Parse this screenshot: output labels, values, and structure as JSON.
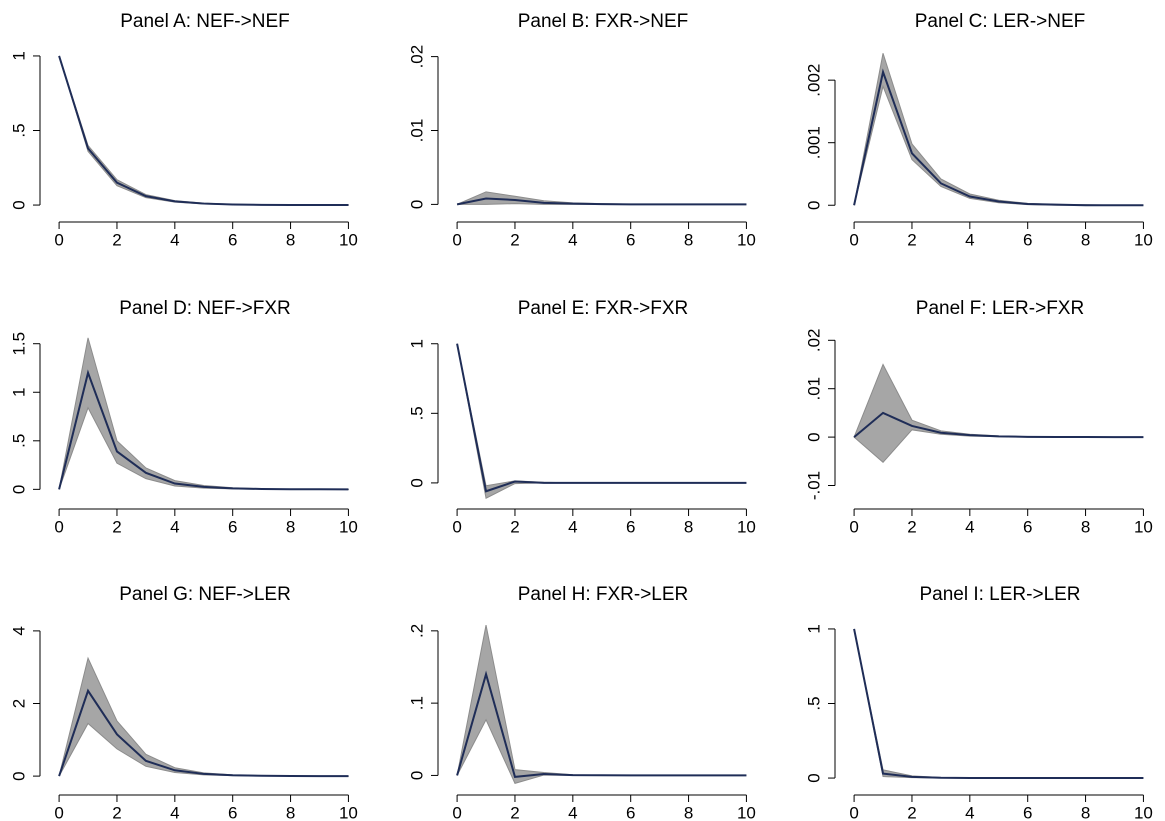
{
  "chart_data": [
    {
      "type": "irf",
      "title": "Panel A: NEF->NEF",
      "x": [
        0,
        1,
        2,
        3,
        4,
        5,
        6,
        7,
        8,
        9,
        10
      ],
      "values": [
        1,
        0.38,
        0.15,
        0.06,
        0.025,
        0.01,
        0.004,
        0.0015,
        0.0006,
        0.0002,
        0.0001
      ],
      "band": {
        "lower": [
          1,
          0.36,
          0.13,
          0.05,
          0.02,
          0.007,
          0.003,
          0.001,
          0.0004,
          0.0001,
          0
        ],
        "upper": [
          1,
          0.4,
          0.17,
          0.07,
          0.03,
          0.013,
          0.005,
          0.002,
          0.0008,
          0.0003,
          0.0001
        ],
        "color": "#a6a6a6"
      },
      "color": "#1f2d57",
      "xlim": [
        -0.66,
        10.4
      ],
      "xticks": [
        0,
        2,
        4,
        6,
        8,
        10
      ],
      "ylim": [
        -0.06,
        1.06
      ],
      "yticks": [
        0,
        {
          "value": 0.5,
          "label": ".5"
        },
        1
      ]
    },
    {
      "type": "irf",
      "title": "Panel B: FXR->NEF",
      "x": [
        0,
        1,
        2,
        3,
        4,
        5,
        6,
        7,
        8,
        9,
        10
      ],
      "values": [
        0,
        0.0008,
        0.0006,
        0.0002,
        0.0001,
        4e-05,
        1e-05,
        0,
        0,
        0,
        0
      ],
      "band": {
        "lower": [
          0,
          0,
          0.0001,
          0,
          0,
          0,
          0,
          0,
          0,
          0,
          0
        ],
        "upper": [
          0,
          0.0017,
          0.0011,
          0.0005,
          0.0002,
          0.0001,
          3e-05,
          1e-05,
          0,
          0,
          0
        ],
        "color": "#a6a6a6"
      },
      "color": "#1f2d57",
      "xlim": [
        -0.66,
        10.4
      ],
      "xticks": [
        0,
        2,
        4,
        6,
        8,
        10
      ],
      "ylim": [
        -0.0013,
        0.0213
      ],
      "yticks": [
        0,
        {
          "value": 0.01,
          "label": ".01"
        },
        {
          "value": 0.02,
          "label": ".02"
        }
      ]
    },
    {
      "type": "irf",
      "title": "Panel C: LER->NEF",
      "x": [
        0,
        1,
        2,
        3,
        4,
        5,
        6,
        7,
        8,
        9,
        10
      ],
      "values": [
        0,
        0.00213,
        0.00083,
        0.00035,
        0.00014,
        6e-05,
        2e-05,
        1e-05,
        0,
        0,
        0
      ],
      "band": {
        "lower": [
          0,
          0.0019,
          0.00073,
          0.0003,
          0.00011,
          4e-05,
          1e-05,
          0,
          0,
          0,
          0
        ],
        "upper": [
          0,
          0.00243,
          0.00098,
          0.00042,
          0.00018,
          8e-05,
          3e-05,
          1e-05,
          1e-05,
          0,
          0
        ],
        "color": "#a6a6a6"
      },
      "color": "#1f2d57",
      "xlim": [
        -0.66,
        10.4
      ],
      "xticks": [
        0,
        2,
        4,
        6,
        8,
        10
      ],
      "ylim": [
        -0.00014,
        0.00253
      ],
      "yticks": [
        0,
        {
          "value": 0.001,
          "label": ".001"
        },
        {
          "value": 0.002,
          "label": ".002"
        }
      ]
    },
    {
      "type": "irf",
      "title": "Panel D: NEF->FXR",
      "x": [
        0,
        1,
        2,
        3,
        4,
        5,
        6,
        7,
        8,
        9,
        10
      ],
      "values": [
        0,
        1.2,
        0.39,
        0.17,
        0.06,
        0.025,
        0.01,
        0.004,
        0.0015,
        0.0005,
        0.0002
      ],
      "band": {
        "lower": [
          0,
          0.84,
          0.27,
          0.11,
          0.035,
          0.013,
          0.005,
          0.002,
          0.0005,
          0.0001,
          0
        ],
        "upper": [
          0,
          1.56,
          0.5,
          0.22,
          0.09,
          0.04,
          0.016,
          0.006,
          0.0025,
          0.001,
          0.0003
        ],
        "color": "#a6a6a6"
      },
      "color": "#1f2d57",
      "xlim": [
        -0.66,
        10.4
      ],
      "xticks": [
        0,
        2,
        4,
        6,
        8,
        10
      ],
      "ylim": [
        -0.12,
        1.6
      ],
      "yticks": [
        0,
        {
          "value": 0.5,
          "label": ".5"
        },
        1,
        1.5
      ]
    },
    {
      "type": "irf",
      "title": "Panel E: FXR->FXR",
      "x": [
        0,
        1,
        2,
        3,
        4,
        5,
        6,
        7,
        8,
        9,
        10
      ],
      "values": [
        1,
        -0.06,
        0.01,
        0,
        0,
        0,
        0,
        0,
        0,
        0,
        0
      ],
      "band": {
        "lower": [
          1,
          -0.11,
          -0.005,
          0,
          0,
          0,
          0,
          0,
          0,
          0,
          0
        ],
        "upper": [
          1,
          -0.02,
          0.015,
          0.005,
          0,
          0,
          0,
          0,
          0,
          0,
          0
        ],
        "color": "#a6a6a6"
      },
      "color": "#1f2d57",
      "xlim": [
        -0.66,
        10.4
      ],
      "xticks": [
        0,
        2,
        4,
        6,
        8,
        10
      ],
      "ylim": [
        -0.13,
        1.07
      ],
      "yticks": [
        0,
        {
          "value": 0.5,
          "label": ".5"
        },
        1
      ]
    },
    {
      "type": "irf",
      "title": "Panel F: LER->FXR",
      "x": [
        0,
        1,
        2,
        3,
        4,
        5,
        6,
        7,
        8,
        9,
        10
      ],
      "values": [
        0,
        0.005,
        0.0023,
        0.0009,
        0.0004,
        0.00015,
        6e-05,
        2e-05,
        1e-05,
        0,
        0
      ],
      "band": {
        "lower": [
          0,
          -0.0052,
          0.0015,
          0.0006,
          0.0002,
          0.0001,
          0,
          0,
          0,
          0,
          0
        ],
        "upper": [
          0,
          0.015,
          0.0035,
          0.0013,
          0.0006,
          0.00025,
          0.0001,
          4e-05,
          2e-05,
          1e-05,
          0
        ],
        "color": "#a6a6a6"
      },
      "color": "#1f2d57",
      "xlim": [
        -0.66,
        10.4
      ],
      "xticks": [
        0,
        2,
        4,
        6,
        8,
        10
      ],
      "ylim": [
        -0.0132,
        0.0213
      ],
      "yticks": [
        {
          "value": -0.01,
          "label": "-.01"
        },
        0,
        {
          "value": 0.01,
          "label": ".01"
        },
        {
          "value": 0.02,
          "label": ".02"
        }
      ]
    },
    {
      "type": "irf",
      "title": "Panel G: NEF->LER",
      "x": [
        0,
        1,
        2,
        3,
        4,
        5,
        6,
        7,
        8,
        9,
        10
      ],
      "values": [
        0,
        2.35,
        1.15,
        0.42,
        0.16,
        0.06,
        0.023,
        0.009,
        0.003,
        0.001,
        0.0005
      ],
      "band": {
        "lower": [
          0,
          1.45,
          0.75,
          0.27,
          0.1,
          0.035,
          0.013,
          0.005,
          0.002,
          0.0005,
          0.0002
        ],
        "upper": [
          0,
          3.25,
          1.52,
          0.6,
          0.23,
          0.09,
          0.035,
          0.013,
          0.005,
          0.002,
          0.0008
        ],
        "color": "#a6a6a6"
      },
      "color": "#1f2d57",
      "xlim": [
        -0.66,
        10.4
      ],
      "xticks": [
        0,
        2,
        4,
        6,
        8,
        10
      ],
      "ylim": [
        -0.3,
        4.3
      ],
      "yticks": [
        0,
        2,
        4
      ]
    },
    {
      "type": "irf",
      "title": "Panel H: FXR->LER",
      "x": [
        0,
        1,
        2,
        3,
        4,
        5,
        6,
        7,
        8,
        9,
        10
      ],
      "values": [
        0,
        0.14,
        -0.002,
        0.002,
        0.0005,
        0.0002,
        0,
        0,
        0,
        0,
        0
      ],
      "band": {
        "lower": [
          0,
          0.077,
          -0.011,
          0.0005,
          0,
          0,
          0,
          0,
          0,
          0,
          0
        ],
        "upper": [
          0,
          0.208,
          0.008,
          0.004,
          0.001,
          0.0004,
          0,
          0,
          0,
          0,
          0
        ],
        "color": "#a6a6a6"
      },
      "color": "#1f2d57",
      "xlim": [
        -0.66,
        10.4
      ],
      "xticks": [
        0,
        2,
        4,
        6,
        8,
        10
      ],
      "ylim": [
        -0.016,
        0.215
      ],
      "yticks": [
        0,
        {
          "value": 0.1,
          "label": ".1"
        },
        {
          "value": 0.2,
          "label": ".2"
        }
      ]
    },
    {
      "type": "irf",
      "title": "Panel I: LER->LER",
      "x": [
        0,
        1,
        2,
        3,
        4,
        5,
        6,
        7,
        8,
        9,
        10
      ],
      "values": [
        1,
        0.03,
        0.008,
        0.002,
        0.0006,
        0.0002,
        0,
        0,
        0,
        0,
        0
      ],
      "band": {
        "lower": [
          1,
          0.01,
          0.003,
          0,
          0,
          0,
          0,
          0,
          0,
          0,
          0
        ],
        "upper": [
          1,
          0.055,
          0.015,
          0.004,
          0.001,
          0.0003,
          0,
          0,
          0,
          0,
          0
        ],
        "color": "#a6a6a6"
      },
      "color": "#1f2d57",
      "xlim": [
        -0.66,
        10.4
      ],
      "xticks": [
        0,
        2,
        4,
        6,
        8,
        10
      ],
      "ylim": [
        -0.06,
        1.06
      ],
      "yticks": [
        0,
        {
          "value": 0.5,
          "label": ".5"
        },
        1
      ]
    }
  ]
}
